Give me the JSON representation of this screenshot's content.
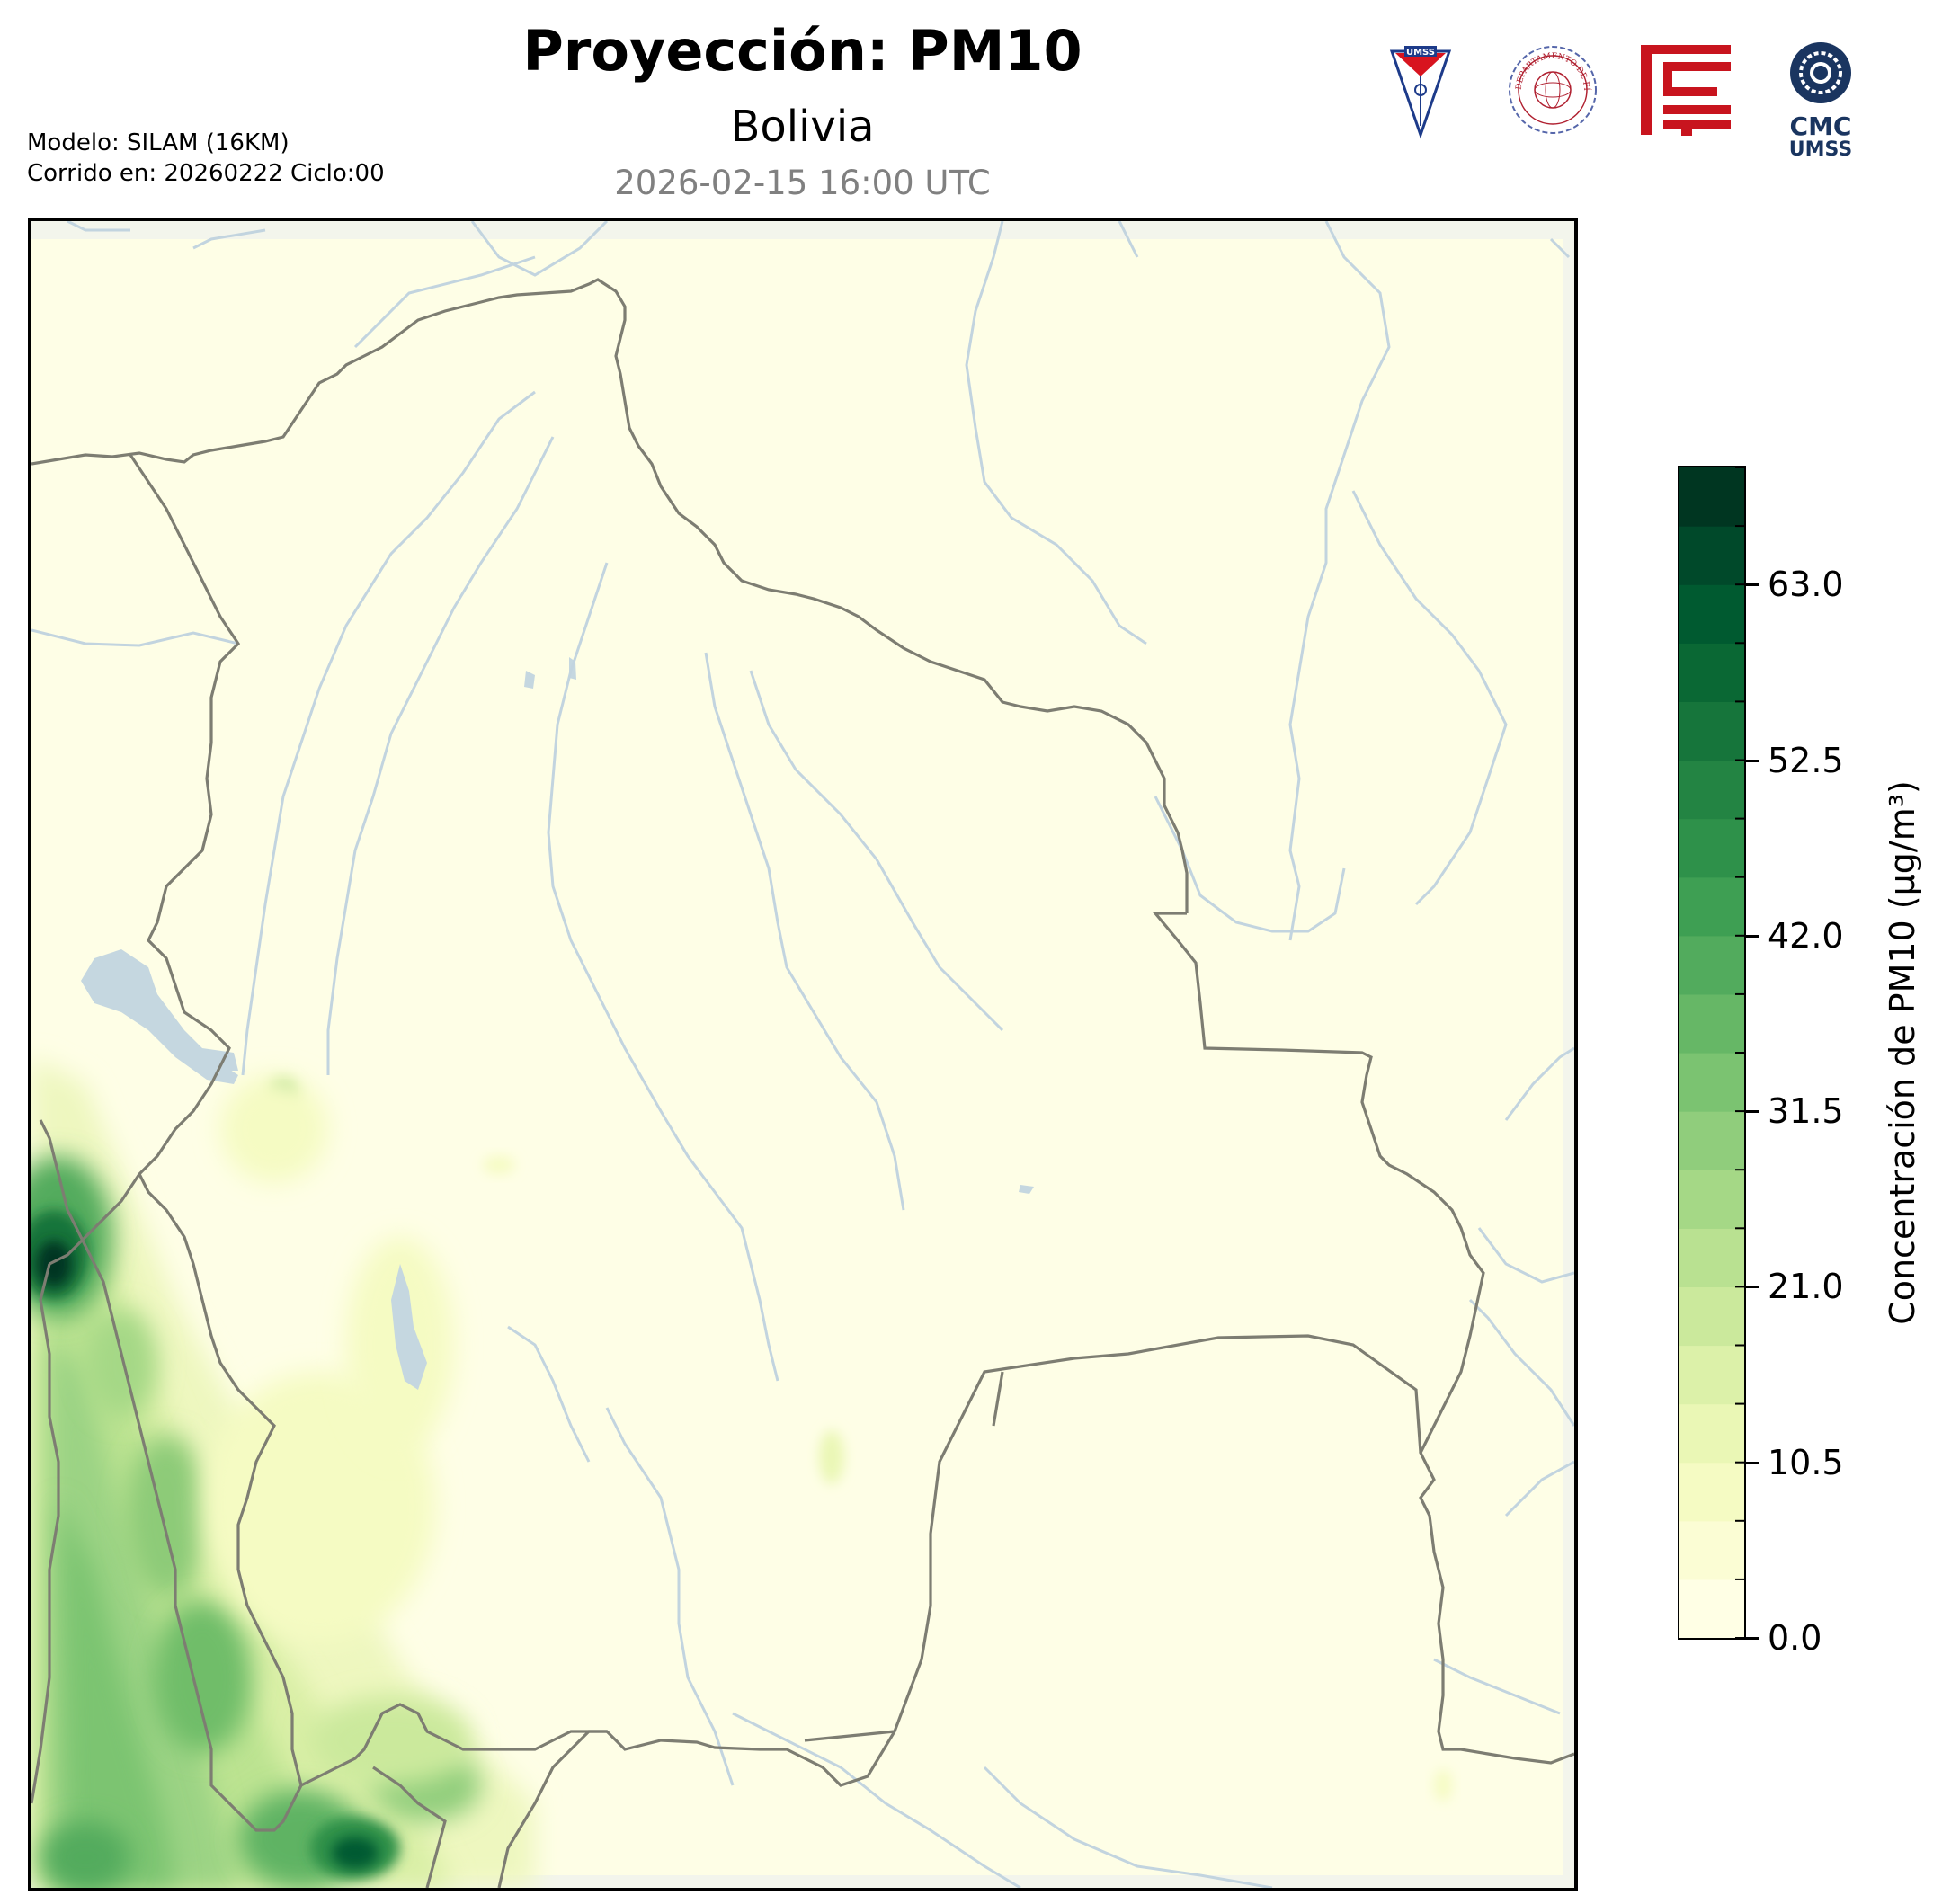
{
  "header": {
    "title": "Proyección: PM10",
    "subtitle": "Bolivia",
    "datetime": "2026-02-15 16:00 UTC",
    "model_line": "Modelo: SILAM (16KM)",
    "run_line": "Corrido en: 20260222 Ciclo:00"
  },
  "logos": [
    {
      "name": "umss-shield-logo",
      "text": "UMSS"
    },
    {
      "name": "departamento-fisica-seal",
      "text": "DEPARTAMENTO DE FÍSICA"
    },
    {
      "name": "red-geometric-logo",
      "text": ""
    },
    {
      "name": "cmc-umss-logo",
      "text": "CMC UMSS"
    }
  ],
  "colorbar": {
    "label": "Concentración de PM10 (µg/m³)",
    "ticks": [
      "0.0",
      "10.5",
      "21.0",
      "31.5",
      "42.0",
      "52.5",
      "63.0"
    ],
    "tick_values": [
      0,
      10.5,
      21,
      31.5,
      42,
      52.5,
      63
    ],
    "vmin": 0,
    "vmax": 70,
    "levels": 20,
    "colors": [
      "#ffffe5",
      "#fbfdd4",
      "#f5fbc3",
      "#eaf7b5",
      "#dcf1a9",
      "#cbe99c",
      "#b9e191",
      "#a5d886",
      "#90cd7c",
      "#7bc371",
      "#66b766",
      "#52ab5d",
      "#3e9f53",
      "#2e914a",
      "#238443",
      "#16753b",
      "#0a6834",
      "#005a30",
      "#00492a",
      "#003621"
    ]
  }
}
